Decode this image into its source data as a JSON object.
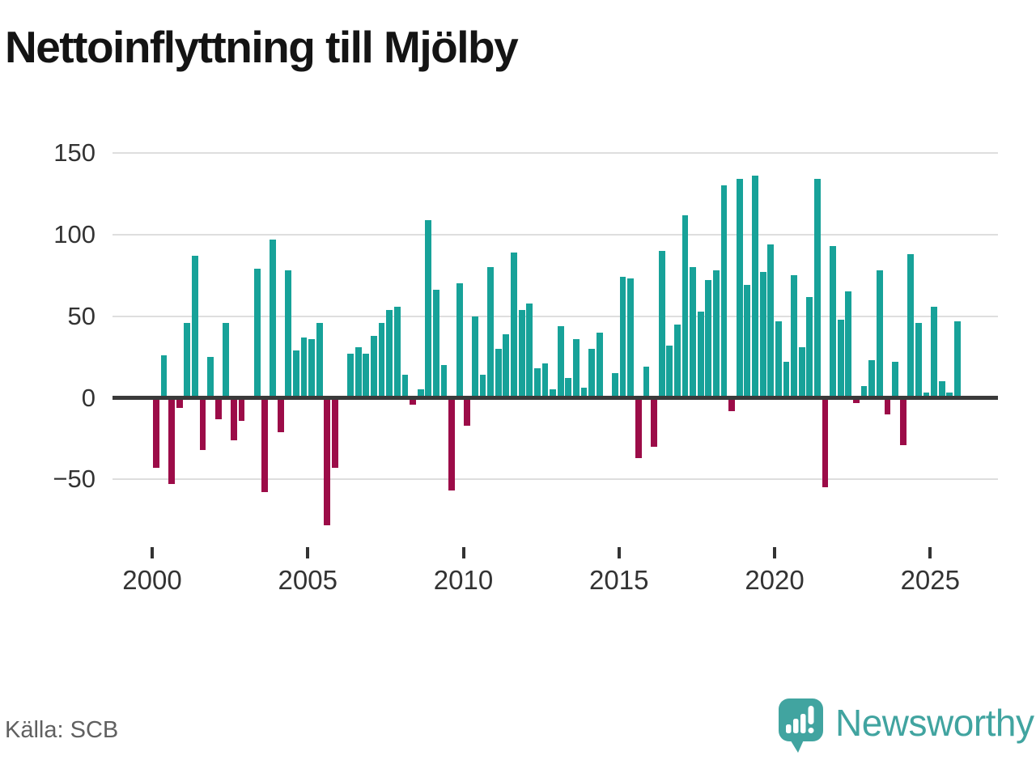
{
  "title": "Nettoinflyttning till Mjölby",
  "source": "Källa: SCB",
  "brand": {
    "name": "Newsworthy",
    "icon": "newsworthy-speech-bubble-chart-icon"
  },
  "colors": {
    "bar_positive": "#17a299",
    "bar_negative": "#9c0c48",
    "grid": "#dedede",
    "axis": "#3a3a3a",
    "tick_text": "#333333",
    "title_text": "#141414",
    "source_text": "#606060",
    "brand_teal": "#41a4a0",
    "background": "#ffffff"
  },
  "chart_data": {
    "type": "bar",
    "title": "Nettoinflyttning till Mjölby",
    "frequency": "quarterly",
    "start_year": 2000,
    "start_quarter": "Q1",
    "values": [
      -43,
      26,
      -53,
      -6,
      46,
      87,
      -32,
      25,
      -13,
      46,
      -26,
      -14,
      0,
      79,
      -58,
      97,
      -21,
      78,
      29,
      37,
      36,
      46,
      -78,
      -43,
      0,
      27,
      31,
      27,
      38,
      46,
      54,
      56,
      14,
      -4,
      5,
      109,
      66,
      20,
      -57,
      70,
      -17,
      50,
      14,
      80,
      30,
      39,
      89,
      54,
      58,
      18,
      21,
      5,
      44,
      12,
      36,
      6,
      30,
      40,
      0,
      15,
      74,
      73,
      -37,
      19,
      -30,
      90,
      32,
      45,
      112,
      80,
      53,
      72,
      78,
      130,
      -8,
      134,
      69,
      136,
      77,
      94,
      47,
      22,
      75,
      31,
      62,
      134,
      -55,
      93,
      48,
      65,
      -3,
      7,
      23,
      78,
      -10,
      22,
      -29,
      88,
      46,
      3,
      56,
      10,
      3,
      47
    ],
    "x_tick_labels": [
      "2000",
      "2005",
      "2010",
      "2015",
      "2020",
      "2025"
    ],
    "y_ticks": [
      150,
      100,
      50,
      0,
      -50
    ],
    "y_tick_labels": [
      "150",
      "100",
      "50",
      "0",
      "−50"
    ],
    "ylim": [
      -85,
      155
    ],
    "grid": true,
    "legend": "none"
  }
}
